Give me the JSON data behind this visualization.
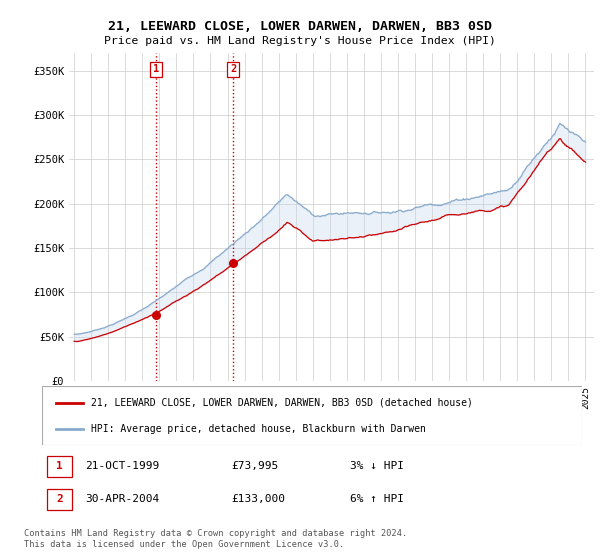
{
  "title": "21, LEEWARD CLOSE, LOWER DARWEN, DARWEN, BB3 0SD",
  "subtitle": "Price paid vs. HM Land Registry's House Price Index (HPI)",
  "legend_line1": "21, LEEWARD CLOSE, LOWER DARWEN, DARWEN, BB3 0SD (detached house)",
  "legend_line2": "HPI: Average price, detached house, Blackburn with Darwen",
  "annotation1_date": "21-OCT-1999",
  "annotation1_price": "£73,995",
  "annotation1_hpi": "3% ↓ HPI",
  "annotation2_date": "30-APR-2004",
  "annotation2_price": "£133,000",
  "annotation2_hpi": "6% ↑ HPI",
  "footer": "Contains HM Land Registry data © Crown copyright and database right 2024.\nThis data is licensed under the Open Government Licence v3.0.",
  "price_color": "#cc0000",
  "hpi_color": "#88aacc",
  "vline_color": "#cc0000",
  "fill_color": "#c8d8ee",
  "ylim": [
    0,
    370000
  ],
  "yticks": [
    0,
    50000,
    100000,
    150000,
    200000,
    250000,
    300000,
    350000
  ],
  "ytick_labels": [
    "£0",
    "£50K",
    "£100K",
    "£150K",
    "£200K",
    "£250K",
    "£300K",
    "£350K"
  ],
  "purchase1_x": 1999.8,
  "purchase1_y": 73995,
  "purchase2_x": 2004.33,
  "purchase2_y": 133000,
  "xmin": 1994.7,
  "xmax": 2025.5,
  "background_color": "#ffffff",
  "grid_color": "#cccccc",
  "border_color": "#aaaaaa"
}
